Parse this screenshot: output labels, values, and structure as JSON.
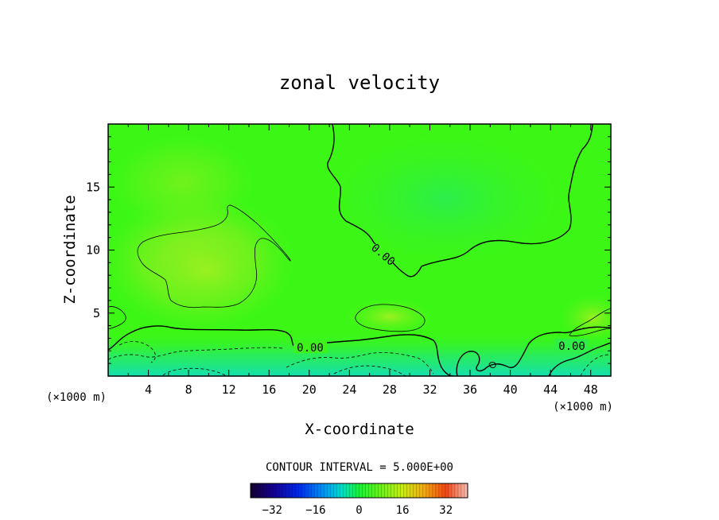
{
  "chart_data": {
    "type": "heatmap",
    "title": "zonal velocity",
    "xlabel": "X-coordinate",
    "ylabel": "Z-coordinate",
    "x_unit_left": "(×1000 m)",
    "x_unit_right": "(×1000 m)",
    "xlim": [
      0,
      50
    ],
    "ylim": [
      0,
      20
    ],
    "x_ticks": [
      4,
      8,
      12,
      16,
      20,
      24,
      28,
      32,
      36,
      40,
      44,
      48
    ],
    "y_ticks": [
      5,
      10,
      15
    ],
    "contour_interval_text": "CONTOUR INTERVAL = 5.000E+00",
    "zero_contour_labels": [
      "0.00",
      "0.00",
      "0.00"
    ],
    "colorbar": {
      "range": [
        -40,
        40
      ],
      "ticks": [
        -32,
        -16,
        0,
        16,
        32
      ],
      "colormap": "rainbow"
    },
    "colors": {
      "field_base": "#3dfa14",
      "field_warm": "#8cf21e",
      "field_cool": "#28f05a",
      "field_cold": "#18e6a0"
    }
  }
}
